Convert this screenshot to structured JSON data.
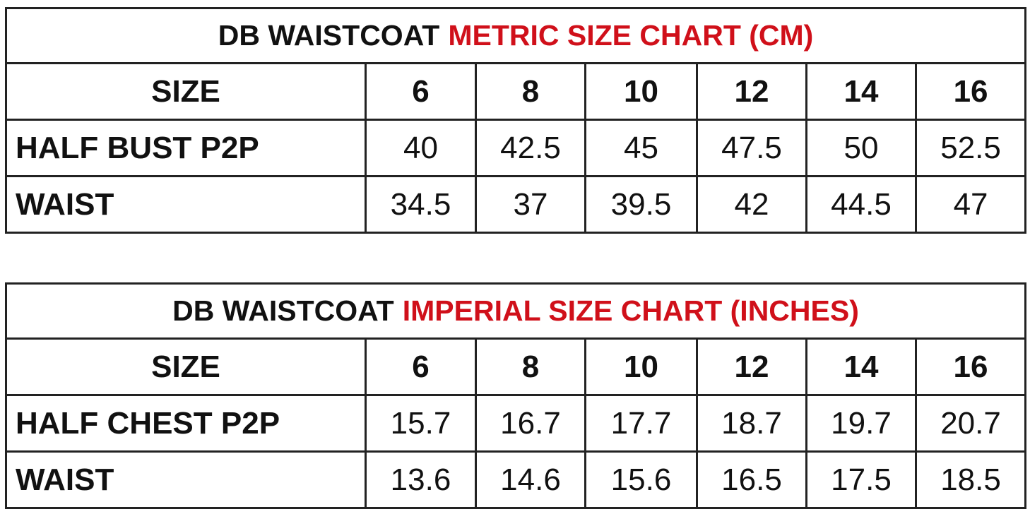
{
  "tables": [
    {
      "title": {
        "prefix": "DB WAISTCOAT",
        "highlight": "METRIC SIZE CHART (CM)"
      },
      "header": [
        "SIZE",
        "6",
        "8",
        "10",
        "12",
        "14",
        "16"
      ],
      "rows": [
        [
          "HALF BUST P2P",
          "40",
          "42.5",
          "45",
          "47.5",
          "50",
          "52.5"
        ],
        [
          "WAIST",
          "34.5",
          "37",
          "39.5",
          "42",
          "44.5",
          "47"
        ]
      ]
    },
    {
      "title": {
        "prefix": "DB WAISTCOAT",
        "highlight": "IMPERIAL SIZE CHART (INCHES)"
      },
      "header": [
        "SIZE",
        "6",
        "8",
        "10",
        "12",
        "14",
        "16"
      ],
      "rows": [
        [
          "HALF CHEST P2P",
          "15.7",
          "16.7",
          "17.7",
          "18.7",
          "19.7",
          "20.7"
        ],
        [
          "WAIST",
          "13.6",
          "14.6",
          "15.6",
          "16.5",
          "17.5",
          "18.5"
        ]
      ]
    }
  ]
}
